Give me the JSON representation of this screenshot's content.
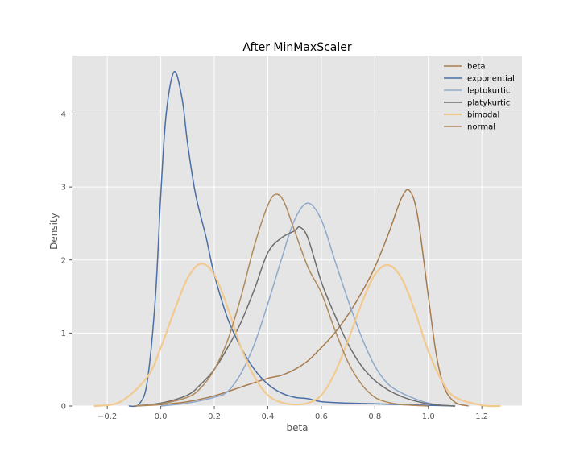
{
  "chart_data": {
    "type": "line",
    "title": "After MinMaxScaler",
    "xlabel": "beta",
    "ylabel": "Density",
    "xlim": [
      -0.33,
      1.35
    ],
    "ylim": [
      0,
      4.8
    ],
    "x_ticks": [
      -0.2,
      0.0,
      0.2,
      0.4,
      0.6,
      0.8,
      1.0,
      1.2
    ],
    "x_tick_labels": [
      "−0.2",
      "0.0",
      "0.2",
      "0.4",
      "0.6",
      "0.8",
      "1.0",
      "1.2"
    ],
    "y_ticks": [
      0,
      1,
      2,
      3,
      4
    ],
    "y_tick_labels": [
      "0",
      "1",
      "2",
      "3",
      "4"
    ],
    "grid": true,
    "legend_position": "top-right",
    "series": [
      {
        "name": "beta",
        "color": "#a67c4e",
        "points": [
          [
            -0.1,
            0
          ],
          [
            0,
            0.02
          ],
          [
            0.1,
            0.06
          ],
          [
            0.2,
            0.14
          ],
          [
            0.3,
            0.26
          ],
          [
            0.4,
            0.38
          ],
          [
            0.45,
            0.42
          ],
          [
            0.5,
            0.5
          ],
          [
            0.55,
            0.62
          ],
          [
            0.6,
            0.8
          ],
          [
            0.65,
            1.0
          ],
          [
            0.7,
            1.25
          ],
          [
            0.75,
            1.55
          ],
          [
            0.8,
            1.9
          ],
          [
            0.85,
            2.35
          ],
          [
            0.9,
            2.85
          ],
          [
            0.93,
            2.95
          ],
          [
            0.96,
            2.6
          ],
          [
            1.0,
            1.5
          ],
          [
            1.03,
            0.7
          ],
          [
            1.06,
            0.25
          ],
          [
            1.1,
            0.05
          ],
          [
            1.15,
            0
          ]
        ]
      },
      {
        "name": "exponential",
        "color": "#4a6fa5",
        "points": [
          [
            -0.12,
            0
          ],
          [
            -0.08,
            0.03
          ],
          [
            -0.05,
            0.35
          ],
          [
            -0.02,
            1.5
          ],
          [
            0.0,
            2.9
          ],
          [
            0.02,
            4.0
          ],
          [
            0.05,
            4.58
          ],
          [
            0.08,
            4.2
          ],
          [
            0.1,
            3.6
          ],
          [
            0.13,
            2.9
          ],
          [
            0.17,
            2.3
          ],
          [
            0.2,
            1.8
          ],
          [
            0.25,
            1.2
          ],
          [
            0.3,
            0.8
          ],
          [
            0.35,
            0.5
          ],
          [
            0.4,
            0.3
          ],
          [
            0.45,
            0.18
          ],
          [
            0.5,
            0.12
          ],
          [
            0.55,
            0.1
          ],
          [
            0.6,
            0.06
          ],
          [
            0.7,
            0.04
          ],
          [
            0.8,
            0.03
          ],
          [
            0.9,
            0.02
          ],
          [
            1.0,
            0.01
          ],
          [
            1.1,
            0
          ]
        ]
      },
      {
        "name": "leptokurtic",
        "color": "#8fa9cc",
        "points": [
          [
            0.0,
            0
          ],
          [
            0.1,
            0.04
          ],
          [
            0.2,
            0.12
          ],
          [
            0.25,
            0.2
          ],
          [
            0.3,
            0.45
          ],
          [
            0.35,
            0.85
          ],
          [
            0.4,
            1.4
          ],
          [
            0.45,
            2.0
          ],
          [
            0.5,
            2.55
          ],
          [
            0.55,
            2.78
          ],
          [
            0.6,
            2.55
          ],
          [
            0.65,
            2.0
          ],
          [
            0.7,
            1.45
          ],
          [
            0.75,
            0.95
          ],
          [
            0.8,
            0.55
          ],
          [
            0.85,
            0.3
          ],
          [
            0.9,
            0.18
          ],
          [
            0.95,
            0.1
          ],
          [
            1.0,
            0.04
          ],
          [
            1.05,
            0.01
          ],
          [
            1.1,
            0
          ]
        ]
      },
      {
        "name": "platykurtic",
        "color": "#6e6e6e",
        "points": [
          [
            -0.1,
            0
          ],
          [
            0.0,
            0.04
          ],
          [
            0.1,
            0.15
          ],
          [
            0.15,
            0.3
          ],
          [
            0.2,
            0.5
          ],
          [
            0.25,
            0.8
          ],
          [
            0.3,
            1.15
          ],
          [
            0.35,
            1.6
          ],
          [
            0.4,
            2.1
          ],
          [
            0.45,
            2.3
          ],
          [
            0.5,
            2.4
          ],
          [
            0.52,
            2.45
          ],
          [
            0.55,
            2.3
          ],
          [
            0.6,
            1.7
          ],
          [
            0.65,
            1.25
          ],
          [
            0.7,
            0.85
          ],
          [
            0.75,
            0.55
          ],
          [
            0.8,
            0.35
          ],
          [
            0.85,
            0.22
          ],
          [
            0.9,
            0.13
          ],
          [
            0.95,
            0.07
          ],
          [
            1.0,
            0.03
          ],
          [
            1.05,
            0.01
          ],
          [
            1.1,
            0
          ]
        ]
      },
      {
        "name": "bimodal",
        "color": "#f2c98e",
        "points": [
          [
            -0.25,
            0
          ],
          [
            -0.15,
            0.06
          ],
          [
            -0.05,
            0.4
          ],
          [
            0.0,
            0.8
          ],
          [
            0.05,
            1.3
          ],
          [
            0.1,
            1.75
          ],
          [
            0.15,
            1.95
          ],
          [
            0.2,
            1.8
          ],
          [
            0.25,
            1.35
          ],
          [
            0.3,
            0.8
          ],
          [
            0.35,
            0.4
          ],
          [
            0.4,
            0.15
          ],
          [
            0.45,
            0.05
          ],
          [
            0.5,
            0.02
          ],
          [
            0.55,
            0.04
          ],
          [
            0.6,
            0.15
          ],
          [
            0.65,
            0.45
          ],
          [
            0.7,
            0.9
          ],
          [
            0.75,
            1.4
          ],
          [
            0.8,
            1.8
          ],
          [
            0.85,
            1.93
          ],
          [
            0.9,
            1.75
          ],
          [
            0.95,
            1.3
          ],
          [
            1.0,
            0.75
          ],
          [
            1.05,
            0.35
          ],
          [
            1.1,
            0.12
          ],
          [
            1.2,
            0.01
          ],
          [
            1.27,
            0
          ]
        ]
      },
      {
        "name": "normal",
        "color": "#b08a5c",
        "points": [
          [
            -0.1,
            0
          ],
          [
            0.0,
            0.03
          ],
          [
            0.1,
            0.12
          ],
          [
            0.15,
            0.25
          ],
          [
            0.2,
            0.5
          ],
          [
            0.25,
            0.9
          ],
          [
            0.3,
            1.5
          ],
          [
            0.35,
            2.2
          ],
          [
            0.4,
            2.75
          ],
          [
            0.43,
            2.9
          ],
          [
            0.46,
            2.8
          ],
          [
            0.5,
            2.4
          ],
          [
            0.55,
            1.9
          ],
          [
            0.6,
            1.55
          ],
          [
            0.65,
            1.05
          ],
          [
            0.7,
            0.6
          ],
          [
            0.75,
            0.3
          ],
          [
            0.8,
            0.12
          ],
          [
            0.85,
            0.05
          ],
          [
            0.9,
            0.02
          ],
          [
            1.0,
            0
          ]
        ]
      }
    ]
  }
}
